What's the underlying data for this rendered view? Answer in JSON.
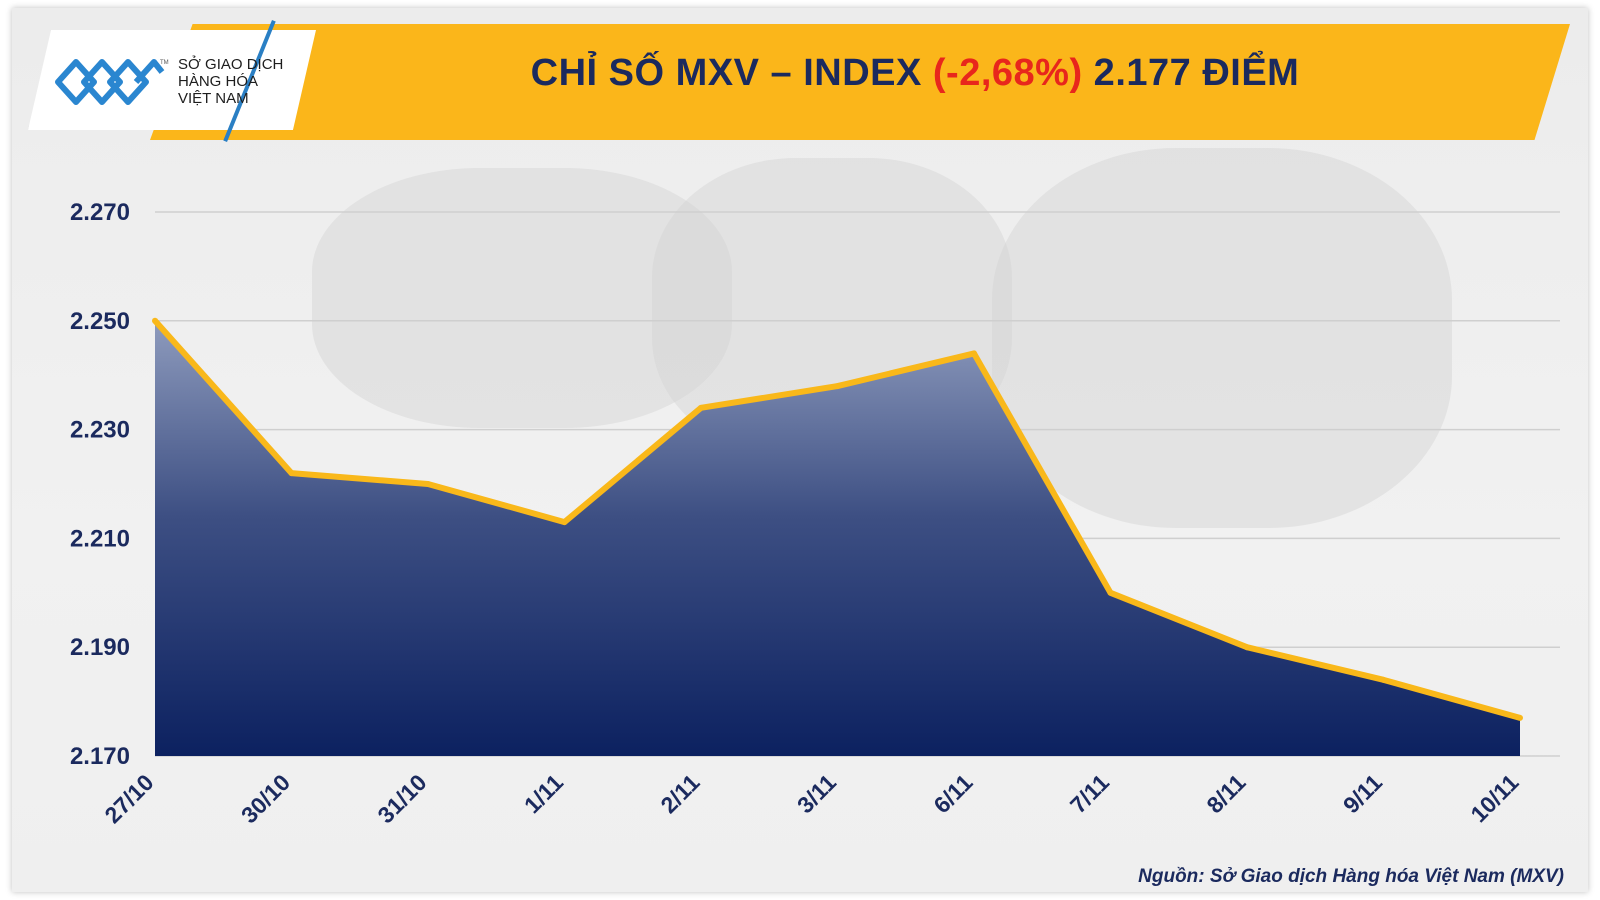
{
  "header": {
    "title_prefix": "CHỈ SỐ MXV – INDEX ",
    "title_change": "(-2,68%)",
    "title_suffix": " 2.177 ĐIỂM"
  },
  "logo": {
    "text": "SỞ GIAO DỊCH\nHÀNG HÓA\nVIỆT NAM",
    "tm": "TM"
  },
  "source": "Nguồn: Sở Giao dịch Hàng hóa Việt Nam (MXV)",
  "colors": {
    "banner": "#fbb61a",
    "title": "#1b2a5e",
    "change": "#e8261c",
    "line": "#f9b81a",
    "area_top": "#8e9bbd",
    "area_bottom": "#0c2160"
  },
  "chart_data": {
    "type": "area",
    "title": "CHỈ SỐ MXV – INDEX (-2,68%) 2.177 ĐIỂM",
    "categories": [
      "27/10",
      "30/10",
      "31/10",
      "1/11",
      "2/11",
      "3/11",
      "6/11",
      "7/11",
      "8/11",
      "9/11",
      "10/11"
    ],
    "series": [
      {
        "values": [
          2250,
          2222,
          2220,
          2213,
          2234,
          2238,
          2244,
          2200,
          2190,
          2184,
          2177
        ]
      }
    ],
    "yticks": [
      "2.170",
      "2.190",
      "2.210",
      "2.230",
      "2.250",
      "2.270"
    ],
    "ytick_values": [
      2170,
      2190,
      2210,
      2230,
      2250,
      2270
    ],
    "ylim": [
      2170,
      2270
    ],
    "grid": true,
    "legend": "none"
  }
}
